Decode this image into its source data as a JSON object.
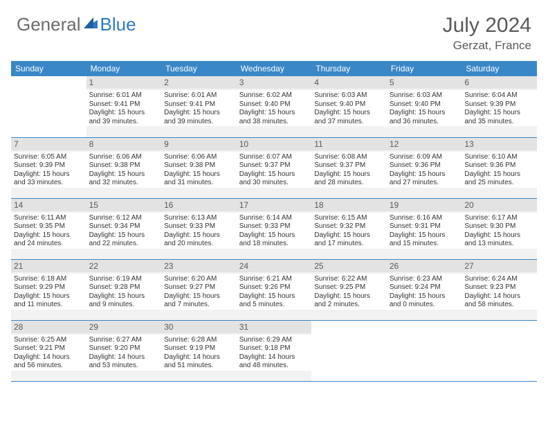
{
  "logo": {
    "general": "General",
    "blue": "Blue"
  },
  "header": {
    "month_title": "July 2024",
    "location": "Gerzat, France"
  },
  "colors": {
    "header_bg": "#3a87c7",
    "header_text": "#ffffff",
    "daynum_bg": "#e3e3e3",
    "cell_bg": "#f2f2f2",
    "divider": "#3a87c7",
    "logo_gray": "#6b6b6b",
    "logo_blue": "#2f78c4",
    "title_color": "#595959"
  },
  "day_headers": [
    "Sunday",
    "Monday",
    "Tuesday",
    "Wednesday",
    "Thursday",
    "Friday",
    "Saturday"
  ],
  "weeks": [
    [
      {
        "empty": true
      },
      {
        "num": "1",
        "sunrise": "Sunrise: 6:01 AM",
        "sunset": "Sunset: 9:41 PM",
        "day1": "Daylight: 15 hours",
        "day2": "and 39 minutes."
      },
      {
        "num": "2",
        "sunrise": "Sunrise: 6:01 AM",
        "sunset": "Sunset: 9:41 PM",
        "day1": "Daylight: 15 hours",
        "day2": "and 39 minutes."
      },
      {
        "num": "3",
        "sunrise": "Sunrise: 6:02 AM",
        "sunset": "Sunset: 9:40 PM",
        "day1": "Daylight: 15 hours",
        "day2": "and 38 minutes."
      },
      {
        "num": "4",
        "sunrise": "Sunrise: 6:03 AM",
        "sunset": "Sunset: 9:40 PM",
        "day1": "Daylight: 15 hours",
        "day2": "and 37 minutes."
      },
      {
        "num": "5",
        "sunrise": "Sunrise: 6:03 AM",
        "sunset": "Sunset: 9:40 PM",
        "day1": "Daylight: 15 hours",
        "day2": "and 36 minutes."
      },
      {
        "num": "6",
        "sunrise": "Sunrise: 6:04 AM",
        "sunset": "Sunset: 9:39 PM",
        "day1": "Daylight: 15 hours",
        "day2": "and 35 minutes."
      }
    ],
    [
      {
        "num": "7",
        "sunrise": "Sunrise: 6:05 AM",
        "sunset": "Sunset: 9:39 PM",
        "day1": "Daylight: 15 hours",
        "day2": "and 33 minutes."
      },
      {
        "num": "8",
        "sunrise": "Sunrise: 6:06 AM",
        "sunset": "Sunset: 9:38 PM",
        "day1": "Daylight: 15 hours",
        "day2": "and 32 minutes."
      },
      {
        "num": "9",
        "sunrise": "Sunrise: 6:06 AM",
        "sunset": "Sunset: 9:38 PM",
        "day1": "Daylight: 15 hours",
        "day2": "and 31 minutes."
      },
      {
        "num": "10",
        "sunrise": "Sunrise: 6:07 AM",
        "sunset": "Sunset: 9:37 PM",
        "day1": "Daylight: 15 hours",
        "day2": "and 30 minutes."
      },
      {
        "num": "11",
        "sunrise": "Sunrise: 6:08 AM",
        "sunset": "Sunset: 9:37 PM",
        "day1": "Daylight: 15 hours",
        "day2": "and 28 minutes."
      },
      {
        "num": "12",
        "sunrise": "Sunrise: 6:09 AM",
        "sunset": "Sunset: 9:36 PM",
        "day1": "Daylight: 15 hours",
        "day2": "and 27 minutes."
      },
      {
        "num": "13",
        "sunrise": "Sunrise: 6:10 AM",
        "sunset": "Sunset: 9:36 PM",
        "day1": "Daylight: 15 hours",
        "day2": "and 25 minutes."
      }
    ],
    [
      {
        "num": "14",
        "sunrise": "Sunrise: 6:11 AM",
        "sunset": "Sunset: 9:35 PM",
        "day1": "Daylight: 15 hours",
        "day2": "and 24 minutes."
      },
      {
        "num": "15",
        "sunrise": "Sunrise: 6:12 AM",
        "sunset": "Sunset: 9:34 PM",
        "day1": "Daylight: 15 hours",
        "day2": "and 22 minutes."
      },
      {
        "num": "16",
        "sunrise": "Sunrise: 6:13 AM",
        "sunset": "Sunset: 9:33 PM",
        "day1": "Daylight: 15 hours",
        "day2": "and 20 minutes."
      },
      {
        "num": "17",
        "sunrise": "Sunrise: 6:14 AM",
        "sunset": "Sunset: 9:33 PM",
        "day1": "Daylight: 15 hours",
        "day2": "and 18 minutes."
      },
      {
        "num": "18",
        "sunrise": "Sunrise: 6:15 AM",
        "sunset": "Sunset: 9:32 PM",
        "day1": "Daylight: 15 hours",
        "day2": "and 17 minutes."
      },
      {
        "num": "19",
        "sunrise": "Sunrise: 6:16 AM",
        "sunset": "Sunset: 9:31 PM",
        "day1": "Daylight: 15 hours",
        "day2": "and 15 minutes."
      },
      {
        "num": "20",
        "sunrise": "Sunrise: 6:17 AM",
        "sunset": "Sunset: 9:30 PM",
        "day1": "Daylight: 15 hours",
        "day2": "and 13 minutes."
      }
    ],
    [
      {
        "num": "21",
        "sunrise": "Sunrise: 6:18 AM",
        "sunset": "Sunset: 9:29 PM",
        "day1": "Daylight: 15 hours",
        "day2": "and 11 minutes."
      },
      {
        "num": "22",
        "sunrise": "Sunrise: 6:19 AM",
        "sunset": "Sunset: 9:28 PM",
        "day1": "Daylight: 15 hours",
        "day2": "and 9 minutes."
      },
      {
        "num": "23",
        "sunrise": "Sunrise: 6:20 AM",
        "sunset": "Sunset: 9:27 PM",
        "day1": "Daylight: 15 hours",
        "day2": "and 7 minutes."
      },
      {
        "num": "24",
        "sunrise": "Sunrise: 6:21 AM",
        "sunset": "Sunset: 9:26 PM",
        "day1": "Daylight: 15 hours",
        "day2": "and 5 minutes."
      },
      {
        "num": "25",
        "sunrise": "Sunrise: 6:22 AM",
        "sunset": "Sunset: 9:25 PM",
        "day1": "Daylight: 15 hours",
        "day2": "and 2 minutes."
      },
      {
        "num": "26",
        "sunrise": "Sunrise: 6:23 AM",
        "sunset": "Sunset: 9:24 PM",
        "day1": "Daylight: 15 hours",
        "day2": "and 0 minutes."
      },
      {
        "num": "27",
        "sunrise": "Sunrise: 6:24 AM",
        "sunset": "Sunset: 9:23 PM",
        "day1": "Daylight: 14 hours",
        "day2": "and 58 minutes."
      }
    ],
    [
      {
        "num": "28",
        "sunrise": "Sunrise: 6:25 AM",
        "sunset": "Sunset: 9:21 PM",
        "day1": "Daylight: 14 hours",
        "day2": "and 56 minutes."
      },
      {
        "num": "29",
        "sunrise": "Sunrise: 6:27 AM",
        "sunset": "Sunset: 9:20 PM",
        "day1": "Daylight: 14 hours",
        "day2": "and 53 minutes."
      },
      {
        "num": "30",
        "sunrise": "Sunrise: 6:28 AM",
        "sunset": "Sunset: 9:19 PM",
        "day1": "Daylight: 14 hours",
        "day2": "and 51 minutes."
      },
      {
        "num": "31",
        "sunrise": "Sunrise: 6:29 AM",
        "sunset": "Sunset: 9:18 PM",
        "day1": "Daylight: 14 hours",
        "day2": "and 48 minutes."
      },
      {
        "empty": true
      },
      {
        "empty": true
      },
      {
        "empty": true
      }
    ]
  ]
}
